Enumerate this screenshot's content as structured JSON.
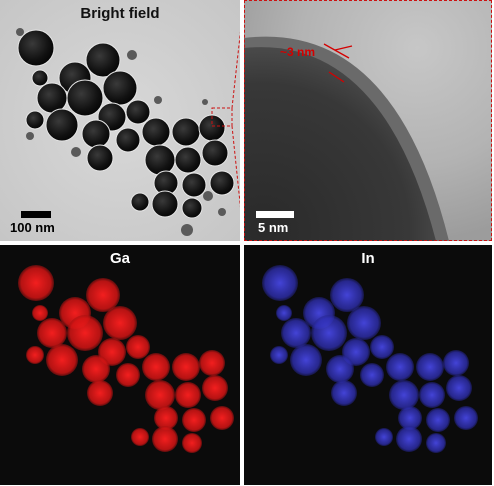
{
  "panels": {
    "bright_field": {
      "title": "Bright field",
      "scale_label": "100 nm"
    },
    "hrtem": {
      "thickness_label": "~3 nm",
      "scale_label": "5 nm"
    },
    "ga_map": {
      "title": "Ga",
      "color": "#e51a1a"
    },
    "in_map": {
      "title": "In",
      "color": "#3a3ad6"
    }
  },
  "colors": {
    "zoom_box": "#cc1111",
    "annotation": "#d40000"
  }
}
